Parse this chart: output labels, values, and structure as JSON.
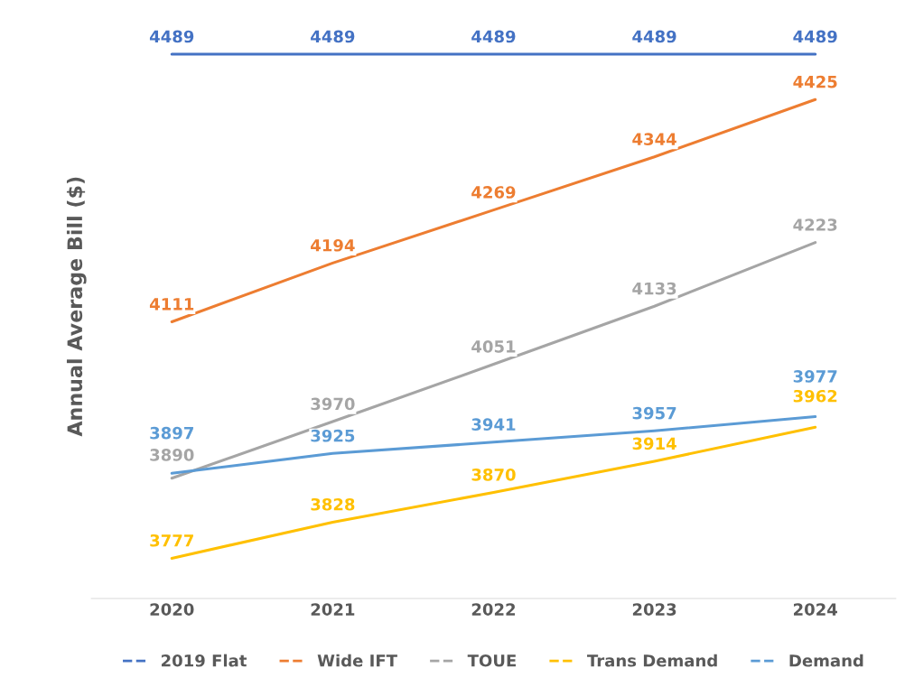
{
  "chart_data": {
    "type": "line",
    "ylabel": "Annual Average Bill ($)",
    "categories": [
      "2020",
      "2021",
      "2022",
      "2023",
      "2024"
    ],
    "series": [
      {
        "name": "2019 Flat",
        "color": "#4472c4",
        "values": [
          4489,
          4489,
          4489,
          4489,
          4489
        ]
      },
      {
        "name": "Wide IFT",
        "color": "#ed7d31",
        "values": [
          4111,
          4194,
          4269,
          4344,
          4425
        ]
      },
      {
        "name": "TOUE",
        "color": "#a5a5a5",
        "values": [
          3890,
          3970,
          4051,
          4133,
          4223
        ]
      },
      {
        "name": "Trans Demand",
        "color": "#ffc000",
        "values": [
          3777,
          3828,
          3870,
          3914,
          3962
        ]
      },
      {
        "name": "Demand",
        "color": "#5b9bd5",
        "values": [
          3897,
          3925,
          3941,
          3957,
          3977
        ]
      }
    ],
    "data_labels": true,
    "legend": "bottom",
    "grid": false,
    "tick_labels": "x",
    "marker": "none",
    "line_style": "solid"
  }
}
